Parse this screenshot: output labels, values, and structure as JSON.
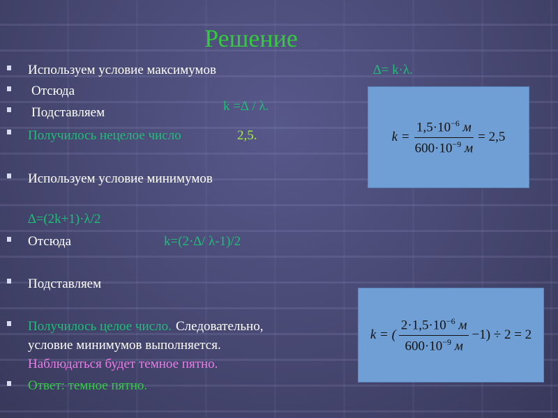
{
  "title": "Решение",
  "lines": {
    "l1": "Используем условие максимумов",
    "l1_formula": "∆= k·λ.",
    "l2": "Отсюда",
    "l2_formula": "k =∆ / λ.",
    "l3": "Подставляем",
    "l4": "Получилось нецелое число",
    "l4_value": "2,5.",
    "l5": "Используем условие минимумов",
    "l6_formula": "∆=(2k+1)·λ/2",
    "l7": "Отсюда",
    "l7_formula": "k=(2·∆/ λ-1)/2",
    "l8": "Подставляем",
    "l9_green": "Получилось целое число.",
    "l9_white": "Следовательно,",
    "l10": "условие минимумов выполняется.",
    "l11": "Наблюдаться будет темное пятно.",
    "l12": "Ответ: темное пятно."
  },
  "formula1": {
    "lhs": "k =",
    "num": "1,5·10",
    "num_exp": "−6",
    "num_unit": "м",
    "den": "600·10",
    "den_exp": "−9",
    "den_unit": "м",
    "rhs": "= 2,5"
  },
  "formula2": {
    "lhs": "k = (",
    "num": "2·1,5·10",
    "num_exp": "−6",
    "num_unit": "м",
    "den": "600·10",
    "den_exp": "−9",
    "den_unit": "м",
    "rhs": "−1) ÷ 2 = 2"
  },
  "colors": {
    "title": "#35c940",
    "text": "#ffffff",
    "formula": "#1fbf78",
    "highlight": "#a6f03a",
    "dark_spot": "#ee7ce8",
    "answer": "#33cc44",
    "box": "#6f9fd4"
  }
}
